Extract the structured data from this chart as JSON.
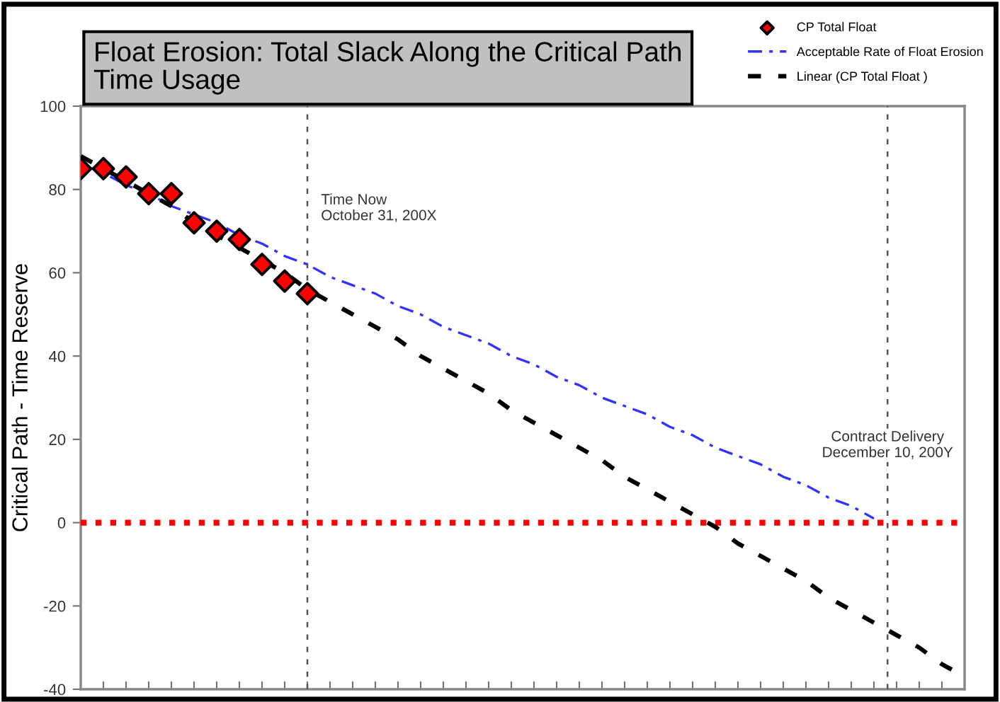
{
  "chart_data": {
    "type": "line",
    "title": "Float Erosion: Total Slack Along the Critical Path\nTime Usage",
    "ylabel": "Critical Path - Time Reserve",
    "categories": [
      null,
      null,
      null,
      null,
      null,
      null,
      null,
      null,
      null,
      null,
      null,
      null,
      null,
      null,
      null,
      null,
      null,
      null,
      null,
      null,
      null,
      null,
      null,
      null,
      null,
      null,
      null,
      null,
      null,
      null,
      null,
      null,
      null,
      null,
      null,
      null,
      null,
      null,
      null,
      null
    ],
    "series": [
      {
        "name": "CP Total Float",
        "type": "scatter",
        "color": "#ff0000",
        "marker": "diamond",
        "values": [
          85,
          85,
          83,
          79,
          79,
          72,
          70,
          68,
          62,
          58,
          55,
          null,
          null,
          null,
          null,
          null,
          null,
          null,
          null,
          null,
          null,
          null,
          null,
          null,
          null,
          null,
          null,
          null,
          null,
          null,
          null,
          null,
          null,
          null,
          null,
          null,
          null,
          null,
          null,
          null
        ]
      },
      {
        "name": "Acceptable Rate of Float Erosion",
        "color": "#3333ff",
        "line_style": "dashdot",
        "values": [
          86,
          84,
          81,
          79,
          76,
          74,
          72,
          69,
          67,
          64,
          62,
          59,
          57,
          55,
          52,
          50,
          47,
          45,
          43,
          40,
          38,
          35,
          33,
          30,
          28,
          26,
          23,
          21,
          18,
          16,
          14,
          11,
          9,
          6,
          4,
          1,
          null,
          null,
          null,
          null
        ]
      },
      {
        "name": "Linear (CP Total Float )",
        "color": "#000000",
        "line_style": "dashed",
        "values": [
          88,
          85,
          82,
          79,
          76,
          72,
          69,
          66,
          63,
          60,
          56,
          53,
          50,
          47,
          44,
          40,
          37,
          34,
          31,
          27,
          24,
          21,
          18,
          15,
          11,
          8,
          5,
          2,
          -1,
          -5,
          -8,
          -11,
          -14,
          -18,
          -21,
          -24,
          -27,
          -30,
          -34,
          -37
        ]
      }
    ],
    "ylim": [
      -40,
      100
    ],
    "yticks": [
      -40,
      -20,
      0,
      20,
      40,
      60,
      80,
      100
    ],
    "tick_labels": "y",
    "grid": false,
    "legend": "top right",
    "annotations": [
      "Time Now\nOctober 31, 200X",
      "Contract Delivery\nDecember 10, 200Y"
    ],
    "ref_lines": [
      {
        "axis": "y",
        "value": 0,
        "label": null,
        "color": "#ff0000",
        "line_style": "dotted"
      }
    ]
  }
}
